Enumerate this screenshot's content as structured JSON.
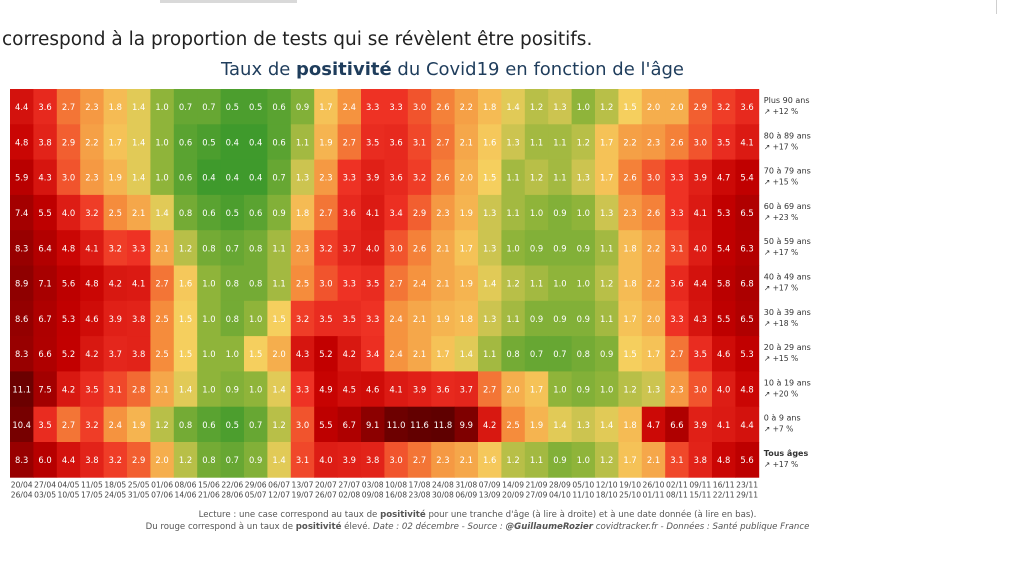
{
  "intro_text": "correspond à la proportion de tests qui se révèlent être positifs.",
  "title": {
    "pre": "Taux de ",
    "bold": "positivité",
    "post": " du Covid19 en fonction de l'âge"
  },
  "footer": {
    "line1_pre": "Lecture : une case correspond au taux de ",
    "line1_bold": "positivité",
    "line1_post": " pour une tranche d'âge (à lire à droite) et à une date donnée (à lire en bas).",
    "line2_pre": "Du rouge correspond à un taux de ",
    "line2_bold": "positivité",
    "line2_mid": " élevé. ",
    "line2_date": " Date : 02 décembre - Source : ",
    "line2_source": "@GuillaumeRozier",
    "line2_post": " covidtracker.fr - Données : Santé publique France"
  },
  "chart_data": {
    "type": "heatmap",
    "title": "Taux de positivité du Covid19 en fonction de l'âge",
    "x": [
      "20/04 26/04",
      "27/04 03/05",
      "04/05 10/05",
      "11/05 17/05",
      "18/05 24/05",
      "25/05 31/05",
      "01/06 07/06",
      "08/06 14/06",
      "15/06 21/06",
      "22/06 28/06",
      "29/06 05/07",
      "06/07 12/07",
      "13/07 19/07",
      "20/07 26/07",
      "27/07 02/08",
      "03/08 09/08",
      "10/08 16/08",
      "17/08 23/08",
      "24/08 30/08",
      "31/08 06/09",
      "07/09 13/09",
      "14/09 20/09",
      "21/09 27/09",
      "28/09 04/10",
      "05/10 11/10",
      "12/10 18/10",
      "19/10 25/10",
      "26/10 01/11",
      "02/11 08/11",
      "09/11 15/11",
      "16/11 22/11",
      "23/11 29/11"
    ],
    "x_labels": [
      [
        "20/04",
        "26/04"
      ],
      [
        "27/04",
        "03/05"
      ],
      [
        "04/05",
        "10/05"
      ],
      [
        "11/05",
        "17/05"
      ],
      [
        "18/05",
        "24/05"
      ],
      [
        "25/05",
        "31/05"
      ],
      [
        "01/06",
        "07/06"
      ],
      [
        "08/06",
        "14/06"
      ],
      [
        "15/06",
        "21/06"
      ],
      [
        "22/06",
        "28/06"
      ],
      [
        "29/06",
        "05/07"
      ],
      [
        "06/07",
        "12/07"
      ],
      [
        "13/07",
        "19/07"
      ],
      [
        "20/07",
        "26/07"
      ],
      [
        "27/07",
        "02/08"
      ],
      [
        "03/08",
        "09/08"
      ],
      [
        "10/08",
        "16/08"
      ],
      [
        "17/08",
        "23/08"
      ],
      [
        "24/08",
        "30/08"
      ],
      [
        "31/08",
        "06/09"
      ],
      [
        "07/09",
        "13/09"
      ],
      [
        "14/09",
        "20/09"
      ],
      [
        "21/09",
        "27/09"
      ],
      [
        "28/09",
        "04/10"
      ],
      [
        "05/10",
        "11/10"
      ],
      [
        "12/10",
        "18/10"
      ],
      [
        "19/10",
        "25/10"
      ],
      [
        "26/10",
        "01/11"
      ],
      [
        "02/11",
        "08/11"
      ],
      [
        "09/11",
        "15/11"
      ],
      [
        "16/11",
        "22/11"
      ],
      [
        "23/11",
        "29/11"
      ]
    ],
    "rows": [
      {
        "label": "Plus 90 ans",
        "change": "↗ +12 %",
        "bold": false,
        "values": [
          4.4,
          3.6,
          2.7,
          2.3,
          1.8,
          1.4,
          1.0,
          0.7,
          0.7,
          0.5,
          0.5,
          0.6,
          0.9,
          1.7,
          2.4,
          3.3,
          3.3,
          3.0,
          2.6,
          2.2,
          1.8,
          1.4,
          1.2,
          1.3,
          1.0,
          1.2,
          1.5,
          2.0,
          2.0,
          2.9,
          3.2,
          3.6
        ]
      },
      {
        "label": "80 à 89 ans",
        "change": "↗ +17 %",
        "bold": false,
        "values": [
          4.8,
          3.8,
          2.9,
          2.2,
          1.7,
          1.4,
          1.0,
          0.6,
          0.5,
          0.4,
          0.4,
          0.6,
          1.1,
          1.9,
          2.7,
          3.5,
          3.6,
          3.1,
          2.7,
          2.1,
          1.6,
          1.3,
          1.1,
          1.1,
          1.2,
          1.7,
          2.2,
          2.3,
          2.6,
          3.0,
          3.5,
          4.1
        ]
      },
      {
        "label": "70 à 79 ans",
        "change": "↗ +15 %",
        "bold": false,
        "values": [
          5.9,
          4.3,
          3.0,
          2.3,
          1.9,
          1.4,
          1.0,
          0.6,
          0.4,
          0.4,
          0.4,
          0.7,
          1.3,
          2.3,
          3.3,
          3.9,
          3.6,
          3.2,
          2.6,
          2.0,
          1.5,
          1.1,
          1.2,
          1.1,
          1.3,
          1.7,
          2.6,
          3.0,
          3.3,
          3.9,
          4.7,
          5.4
        ]
      },
      {
        "label": "60 à 69 ans",
        "change": "↗ +23 %",
        "bold": false,
        "values": [
          7.4,
          5.5,
          4.0,
          3.2,
          2.5,
          2.1,
          1.4,
          0.8,
          0.6,
          0.5,
          0.6,
          0.9,
          1.8,
          2.7,
          3.6,
          4.1,
          3.4,
          2.9,
          2.3,
          1.9,
          1.3,
          1.1,
          1.0,
          0.9,
          1.0,
          1.3,
          2.3,
          2.6,
          3.3,
          4.1,
          5.3,
          6.5
        ]
      },
      {
        "label": "50 à 59 ans",
        "change": "↗ +17 %",
        "bold": false,
        "values": [
          8.3,
          6.4,
          4.8,
          4.1,
          3.2,
          3.3,
          2.1,
          1.2,
          0.8,
          0.7,
          0.8,
          1.1,
          2.3,
          3.2,
          3.7,
          4.0,
          3.0,
          2.6,
          2.1,
          1.7,
          1.3,
          1.0,
          0.9,
          0.9,
          0.9,
          1.1,
          1.8,
          2.2,
          3.1,
          4.0,
          5.4,
          6.3
        ]
      },
      {
        "label": "40 à 49 ans",
        "change": "↗ +17 %",
        "bold": false,
        "values": [
          8.9,
          7.1,
          5.6,
          4.8,
          4.2,
          4.1,
          2.7,
          1.6,
          1.0,
          0.8,
          0.8,
          1.1,
          2.5,
          3.0,
          3.3,
          3.5,
          2.7,
          2.4,
          2.1,
          1.9,
          1.4,
          1.2,
          1.1,
          1.0,
          1.0,
          1.2,
          1.8,
          2.2,
          3.6,
          4.4,
          5.8,
          6.8
        ]
      },
      {
        "label": "30 à 39 ans",
        "change": "↗ +18 %",
        "bold": false,
        "values": [
          8.6,
          6.7,
          5.3,
          4.6,
          3.9,
          3.8,
          2.5,
          1.5,
          1.0,
          0.8,
          1.0,
          1.5,
          3.2,
          3.5,
          3.5,
          3.3,
          2.4,
          2.1,
          1.9,
          1.8,
          1.3,
          1.1,
          0.9,
          0.9,
          0.9,
          1.1,
          1.7,
          2.0,
          3.3,
          4.3,
          5.5,
          6.5
        ]
      },
      {
        "label": "20 à 29 ans",
        "change": "↗ +15 %",
        "bold": false,
        "values": [
          8.3,
          6.6,
          5.2,
          4.2,
          3.7,
          3.8,
          2.5,
          1.5,
          1.0,
          1.0,
          1.5,
          2.0,
          4.3,
          5.2,
          4.2,
          3.4,
          2.4,
          2.1,
          1.7,
          1.4,
          1.1,
          0.8,
          0.7,
          0.7,
          0.8,
          0.9,
          1.5,
          1.7,
          2.7,
          3.5,
          4.6,
          5.3
        ]
      },
      {
        "label": "10 à 19 ans",
        "change": "↗ +20 %",
        "bold": false,
        "values": [
          11.1,
          7.5,
          4.2,
          3.5,
          3.1,
          2.8,
          2.1,
          1.4,
          1.0,
          0.9,
          1.0,
          1.4,
          3.3,
          4.9,
          4.5,
          4.6,
          4.1,
          3.9,
          3.6,
          3.7,
          2.7,
          2.0,
          1.7,
          1.0,
          0.9,
          1.0,
          1.2,
          1.3,
          2.3,
          3.0,
          4.0,
          4.8
        ]
      },
      {
        "label": "0 à 9 ans",
        "change": "↗ +7 %",
        "bold": false,
        "values": [
          10.4,
          3.5,
          2.7,
          3.2,
          2.4,
          1.9,
          1.2,
          0.8,
          0.6,
          0.5,
          0.7,
          1.2,
          3.0,
          5.5,
          6.7,
          9.1,
          11.0,
          11.6,
          11.8,
          9.9,
          4.2,
          2.5,
          1.9,
          1.4,
          1.3,
          1.4,
          1.8,
          4.7,
          6.6,
          3.9,
          4.1,
          4.4
        ]
      },
      {
        "label": "Tous âges",
        "change": "↗ +17 %",
        "bold": true,
        "values": [
          8.3,
          6.0,
          4.4,
          3.8,
          3.2,
          2.9,
          2.0,
          1.2,
          0.8,
          0.7,
          0.9,
          1.4,
          3.1,
          4.0,
          3.9,
          3.8,
          3.0,
          2.7,
          2.3,
          2.1,
          1.6,
          1.2,
          1.1,
          0.9,
          1.0,
          1.2,
          1.7,
          2.1,
          3.1,
          3.8,
          4.8,
          5.6
        ]
      }
    ],
    "color_scale": {
      "low": "#3f9a2c",
      "mid": "#f5cf5e",
      "high": "#c50000",
      "max": "#8e0000"
    },
    "legend": "none",
    "grid": false
  }
}
